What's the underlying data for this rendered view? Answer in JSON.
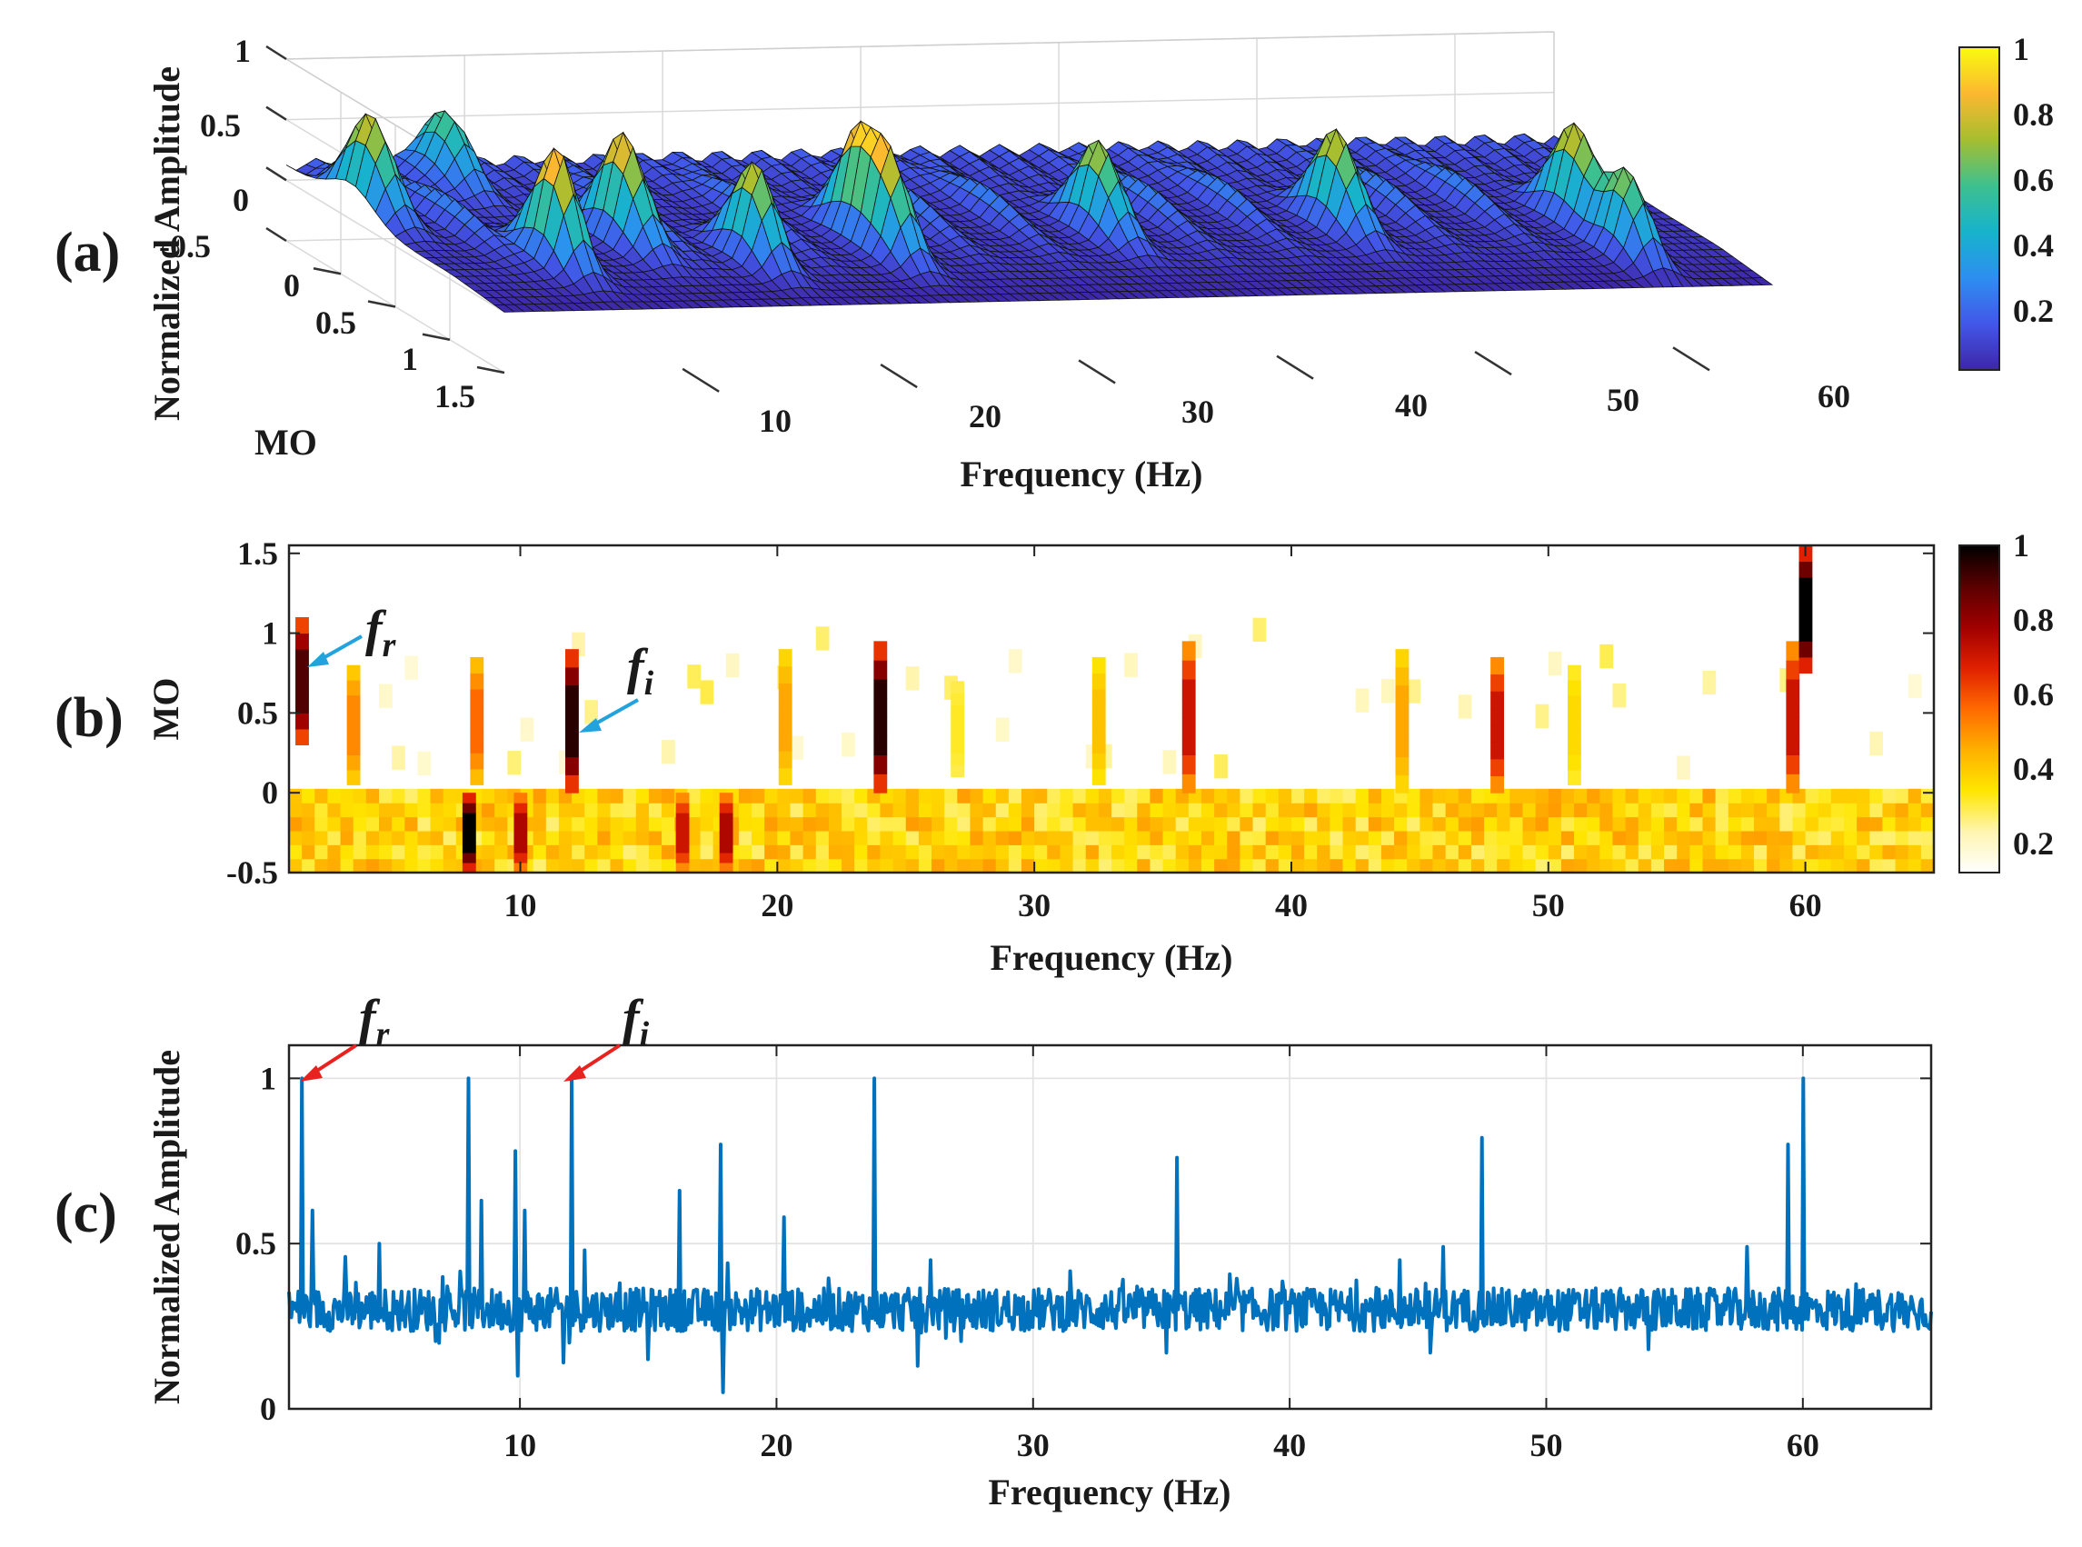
{
  "chart_data": [
    {
      "panel": "(a)",
      "type": "surface3d",
      "xlabel": "Frequency (Hz)",
      "ylabel": "MO",
      "zlabel": "Normalized Amplitude",
      "xticks": [
        "10",
        "20",
        "30",
        "40",
        "50",
        "60"
      ],
      "yticks": [
        "0",
        "0.5",
        "1",
        "1.5"
      ],
      "zticks": [
        "1",
        "0.5",
        "0",
        "-0.5"
      ],
      "xlim": [
        1,
        65
      ],
      "ylim": [
        -0.5,
        1.5
      ],
      "zlim": [
        -0.5,
        1
      ],
      "colorbar_ticks": [
        "1",
        "0.8",
        "0.6",
        "0.4",
        "0.2"
      ],
      "colormap": "parula",
      "colormap_colors": [
        "#3e26a8",
        "#4257e8",
        "#2d8ff0",
        "#17b3cc",
        "#3ec08e",
        "#a6be2f",
        "#fcb830",
        "#f9fb0e"
      ],
      "peaks": [
        {
          "freq": 2,
          "mo": 0.1,
          "height": 0.8
        },
        {
          "freq": 7,
          "mo": 0.9,
          "height": 0.95
        },
        {
          "freq": 8,
          "mo": -0.3,
          "height": 0.55
        },
        {
          "freq": 12,
          "mo": 0.6,
          "height": 0.9
        },
        {
          "freq": 17,
          "mo": 0.9,
          "height": 0.8
        },
        {
          "freq": 24,
          "mo": 0.6,
          "height": 0.85
        },
        {
          "freq": 24,
          "mo": 0.9,
          "height": 0.55
        },
        {
          "freq": 36,
          "mo": 0.6,
          "height": 0.75
        },
        {
          "freq": 48,
          "mo": 0.6,
          "height": 0.8
        },
        {
          "freq": 60,
          "mo": 0.6,
          "height": 0.8
        },
        {
          "freq": 60,
          "mo": 1.2,
          "height": 0.95
        }
      ],
      "minor_ridges": [
        5,
        14,
        20,
        28,
        32,
        40,
        44,
        52,
        56
      ]
    },
    {
      "panel": "(b)",
      "type": "heatmap",
      "xlabel": "Frequency (Hz)",
      "ylabel": "MO",
      "xticks": [
        10,
        20,
        30,
        40,
        50,
        60
      ],
      "yticks": [
        1.5,
        1,
        0.5,
        0,
        -0.5
      ],
      "xlim": [
        1,
        65
      ],
      "ylim": [
        -0.5,
        1.55
      ],
      "colorbar_ticks": [
        1,
        0.8,
        0.6,
        0.4,
        0.2
      ],
      "colorbar_range": [
        0.1,
        1
      ],
      "colormap": "hot-reversed",
      "colormap_colors": [
        "#ffffff",
        "#fff5b0",
        "#ffe600",
        "#ffb000",
        "#ff6a00",
        "#e02000",
        "#a00000",
        "#5a0000",
        "#000000"
      ],
      "annotations": [
        {
          "text": "f",
          "subscript": "r",
          "color": "#23a3de",
          "freq": 1.5,
          "mo": 0.75
        },
        {
          "text": "f",
          "subscript": "i",
          "color": "#23a3de",
          "freq": 12,
          "mo": 0.35
        }
      ],
      "columns": [
        {
          "freq": 1.5,
          "mo_start": 0.3,
          "mo_end": 1.1,
          "value": 0.9
        },
        {
          "freq": 3.5,
          "mo_start": 0.05,
          "mo_end": 0.8,
          "value": 0.5
        },
        {
          "freq": 8.0,
          "mo_start": -0.5,
          "mo_end": 0.0,
          "value": 1.0
        },
        {
          "freq": 8.3,
          "mo_start": 0.05,
          "mo_end": 0.85,
          "value": 0.55
        },
        {
          "freq": 10.0,
          "mo_start": -0.5,
          "mo_end": 0.0,
          "value": 0.75
        },
        {
          "freq": 12.0,
          "mo_start": 0.0,
          "mo_end": 0.9,
          "value": 0.95
        },
        {
          "freq": 16.3,
          "mo_start": -0.5,
          "mo_end": 0.0,
          "value": 0.7
        },
        {
          "freq": 18.0,
          "mo_start": -0.5,
          "mo_end": 0.0,
          "value": 0.75
        },
        {
          "freq": 20.3,
          "mo_start": 0.05,
          "mo_end": 0.9,
          "value": 0.45
        },
        {
          "freq": 24.0,
          "mo_start": 0.0,
          "mo_end": 0.95,
          "value": 0.95
        },
        {
          "freq": 27.0,
          "mo_start": 0.1,
          "mo_end": 0.7,
          "value": 0.3
        },
        {
          "freq": 32.5,
          "mo_start": 0.05,
          "mo_end": 0.85,
          "value": 0.4
        },
        {
          "freq": 36.0,
          "mo_start": 0.0,
          "mo_end": 0.95,
          "value": 0.7
        },
        {
          "freq": 44.3,
          "mo_start": 0.0,
          "mo_end": 0.9,
          "value": 0.45
        },
        {
          "freq": 48.0,
          "mo_start": 0.0,
          "mo_end": 0.85,
          "value": 0.7
        },
        {
          "freq": 51.0,
          "mo_start": 0.05,
          "mo_end": 0.8,
          "value": 0.35
        },
        {
          "freq": 59.5,
          "mo_start": 0.0,
          "mo_end": 0.95,
          "value": 0.7
        },
        {
          "freq": 60.0,
          "mo_start": 0.75,
          "mo_end": 1.55,
          "value": 1.0
        }
      ]
    },
    {
      "panel": "(c)",
      "type": "line",
      "xlabel": "Frequency (Hz)",
      "ylabel": "Normalized Amplitude",
      "xticks": [
        10,
        20,
        30,
        40,
        50,
        60
      ],
      "yticks": [
        0,
        0.5,
        1
      ],
      "xlim": [
        1,
        65
      ],
      "ylim": [
        0,
        1.1
      ],
      "grid": true,
      "line_color": "#0072bd",
      "baseline": 0.3,
      "annotations": [
        {
          "text": "f",
          "subscript": "r",
          "color": "#e8231f",
          "freq": 1.5,
          "amplitude": 1.0
        },
        {
          "text": "f",
          "subscript": "i",
          "color": "#e8231f",
          "freq": 12,
          "amplitude": 1.0
        }
      ],
      "peaks": [
        {
          "freq": 1.5,
          "amplitude": 1.0
        },
        {
          "freq": 1.9,
          "amplitude": 0.6
        },
        {
          "freq": 3.2,
          "amplitude": 0.46
        },
        {
          "freq": 4.5,
          "amplitude": 0.5
        },
        {
          "freq": 8.0,
          "amplitude": 1.0
        },
        {
          "freq": 8.5,
          "amplitude": 0.63
        },
        {
          "freq": 9.8,
          "amplitude": 0.78
        },
        {
          "freq": 10.2,
          "amplitude": 0.6
        },
        {
          "freq": 12.0,
          "amplitude": 1.0
        },
        {
          "freq": 12.5,
          "amplitude": 0.48
        },
        {
          "freq": 16.2,
          "amplitude": 0.66
        },
        {
          "freq": 17.8,
          "amplitude": 0.8
        },
        {
          "freq": 20.3,
          "amplitude": 0.58
        },
        {
          "freq": 23.8,
          "amplitude": 1.0
        },
        {
          "freq": 26.0,
          "amplitude": 0.45
        },
        {
          "freq": 35.6,
          "amplitude": 0.76
        },
        {
          "freq": 44.3,
          "amplitude": 0.45
        },
        {
          "freq": 46.0,
          "amplitude": 0.49
        },
        {
          "freq": 47.5,
          "amplitude": 0.82
        },
        {
          "freq": 57.8,
          "amplitude": 0.49
        },
        {
          "freq": 59.4,
          "amplitude": 0.8
        },
        {
          "freq": 60.0,
          "amplitude": 1.0
        }
      ],
      "dips": [
        {
          "freq": 9.9,
          "amplitude": 0.1
        },
        {
          "freq": 11.7,
          "amplitude": 0.14
        },
        {
          "freq": 17.9,
          "amplitude": 0.05
        },
        {
          "freq": 15.0,
          "amplitude": 0.15
        },
        {
          "freq": 25.5,
          "amplitude": 0.13
        },
        {
          "freq": 35.2,
          "amplitude": 0.17
        },
        {
          "freq": 45.5,
          "amplitude": 0.17
        },
        {
          "freq": 54.0,
          "amplitude": 0.18
        }
      ]
    }
  ]
}
